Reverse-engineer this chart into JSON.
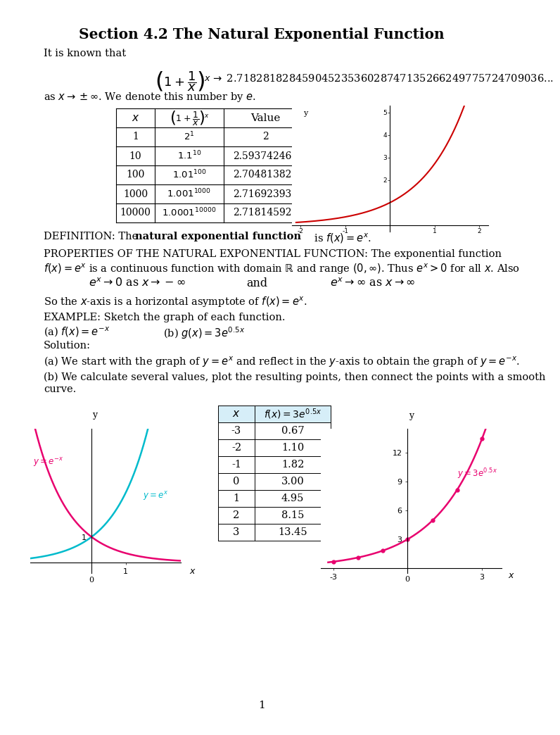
{
  "title": "Section 4.2 The Natural Exponential Function",
  "bg_color": "#ffffff",
  "pink_color": "#e8006e",
  "cyan_color": "#00bbcc",
  "red_color": "#cc0000",
  "table1_x": [
    "1",
    "10",
    "100",
    "1000",
    "10000"
  ],
  "table1_value": [
    "2",
    "2.593742460",
    "2.704813829",
    "2.716923932",
    "2.718145927"
  ],
  "table2_x": [
    "-3",
    "-2",
    "-1",
    "0",
    "1",
    "2",
    "3"
  ],
  "table2_fx": [
    "0.67",
    "1.10",
    "1.82",
    "3.00",
    "4.95",
    "8.15",
    "13.45"
  ]
}
